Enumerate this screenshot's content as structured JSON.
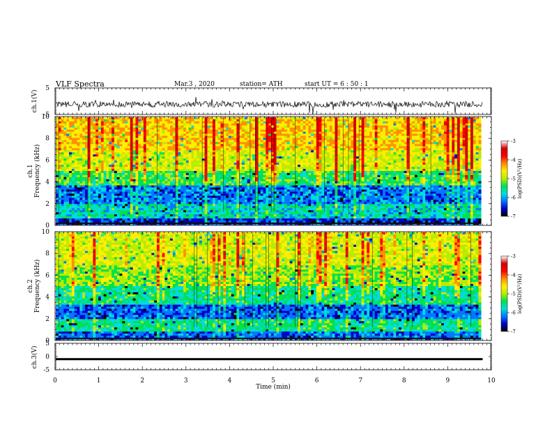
{
  "header": {
    "title": "VLF  Spectra",
    "date": "Mar.3  , 2020",
    "station": "station= ATH",
    "start": "start  UT  =   6  : 50 : 1"
  },
  "colors": {
    "spectrogram_scale": [
      "#000000",
      "#0000c8",
      "#0078ff",
      "#00dcdc",
      "#00e050",
      "#b8ec00",
      "#ffee00",
      "#ff9000",
      "#ff0000",
      "#d20000",
      "#ffffff"
    ],
    "trace": "#000000",
    "frame": "#000000"
  },
  "chart_data": [
    {
      "type": "line",
      "panel": "ch1",
      "ylabel": "ch.1(V)",
      "ylim": [
        -5,
        5
      ],
      "yticks": [
        "5",
        "-5"
      ],
      "description_series": "noisy waveform centred near -1 V",
      "x_range_min": [
        0,
        9.8
      ],
      "approx_level_V": -1.2
    },
    {
      "type": "heatmap",
      "panel": "ch1-spectrogram",
      "ylabel": "ch.1\nFrequency  (kHz)",
      "ylim": [
        0,
        10
      ],
      "yticks": [
        "0",
        "2",
        "4",
        "6",
        "8",
        "10"
      ],
      "colorbar": {
        "label": "log(PSD)(V²/Hz)",
        "range": [
          -7,
          -3
        ],
        "ticks": [
          "-3",
          "-4",
          "-5",
          "-6",
          "-7"
        ]
      },
      "bands": [
        {
          "f_khz": [
            0,
            0.6
          ],
          "level": -6.5
        },
        {
          "f_khz": [
            0.6,
            2.0
          ],
          "level": -5.6
        },
        {
          "f_khz": [
            2.0,
            3.6
          ],
          "level": -6.1
        },
        {
          "f_khz": [
            3.6,
            5.0
          ],
          "level": -5.2
        },
        {
          "f_khz": [
            5.0,
            7.0
          ],
          "level": -4.6
        },
        {
          "f_khz": [
            7.0,
            10.0
          ],
          "level": -4.2
        }
      ]
    },
    {
      "type": "heatmap",
      "panel": "ch2-spectrogram",
      "ylabel": "ch.2\nFrequency  (kHz)",
      "ylim": [
        0,
        10
      ],
      "yticks": [
        "0",
        "2",
        "4",
        "6",
        "8",
        "10"
      ],
      "colorbar": {
        "label": "log(PSD)(V²/Hz)",
        "range": [
          -7,
          -3
        ],
        "ticks": [
          "-3",
          "-4",
          "-5",
          "-6",
          "-7"
        ]
      },
      "bands": [
        {
          "f_khz": [
            0,
            0.8
          ],
          "level": -6.2
        },
        {
          "f_khz": [
            0.8,
            2.0
          ],
          "level": -5.4
        },
        {
          "f_khz": [
            2.0,
            3.2
          ],
          "level": -6.2
        },
        {
          "f_khz": [
            3.2,
            5.0
          ],
          "level": -5.4
        },
        {
          "f_khz": [
            5.0,
            7.0
          ],
          "level": -4.9
        },
        {
          "f_khz": [
            7.0,
            10.0
          ],
          "level": -4.6
        }
      ]
    },
    {
      "type": "line",
      "panel": "ch3",
      "ylabel": "ch.3(V)",
      "ylim": [
        -5,
        5
      ],
      "yticks": [
        "5",
        "0",
        "-5"
      ],
      "approx_level_V": -1.0
    }
  ],
  "xaxis": {
    "label": "Time  (min)",
    "range": [
      0,
      10
    ],
    "ticks": [
      "0",
      "1",
      "2",
      "3",
      "4",
      "5",
      "6",
      "7",
      "8",
      "9",
      "10"
    ]
  }
}
